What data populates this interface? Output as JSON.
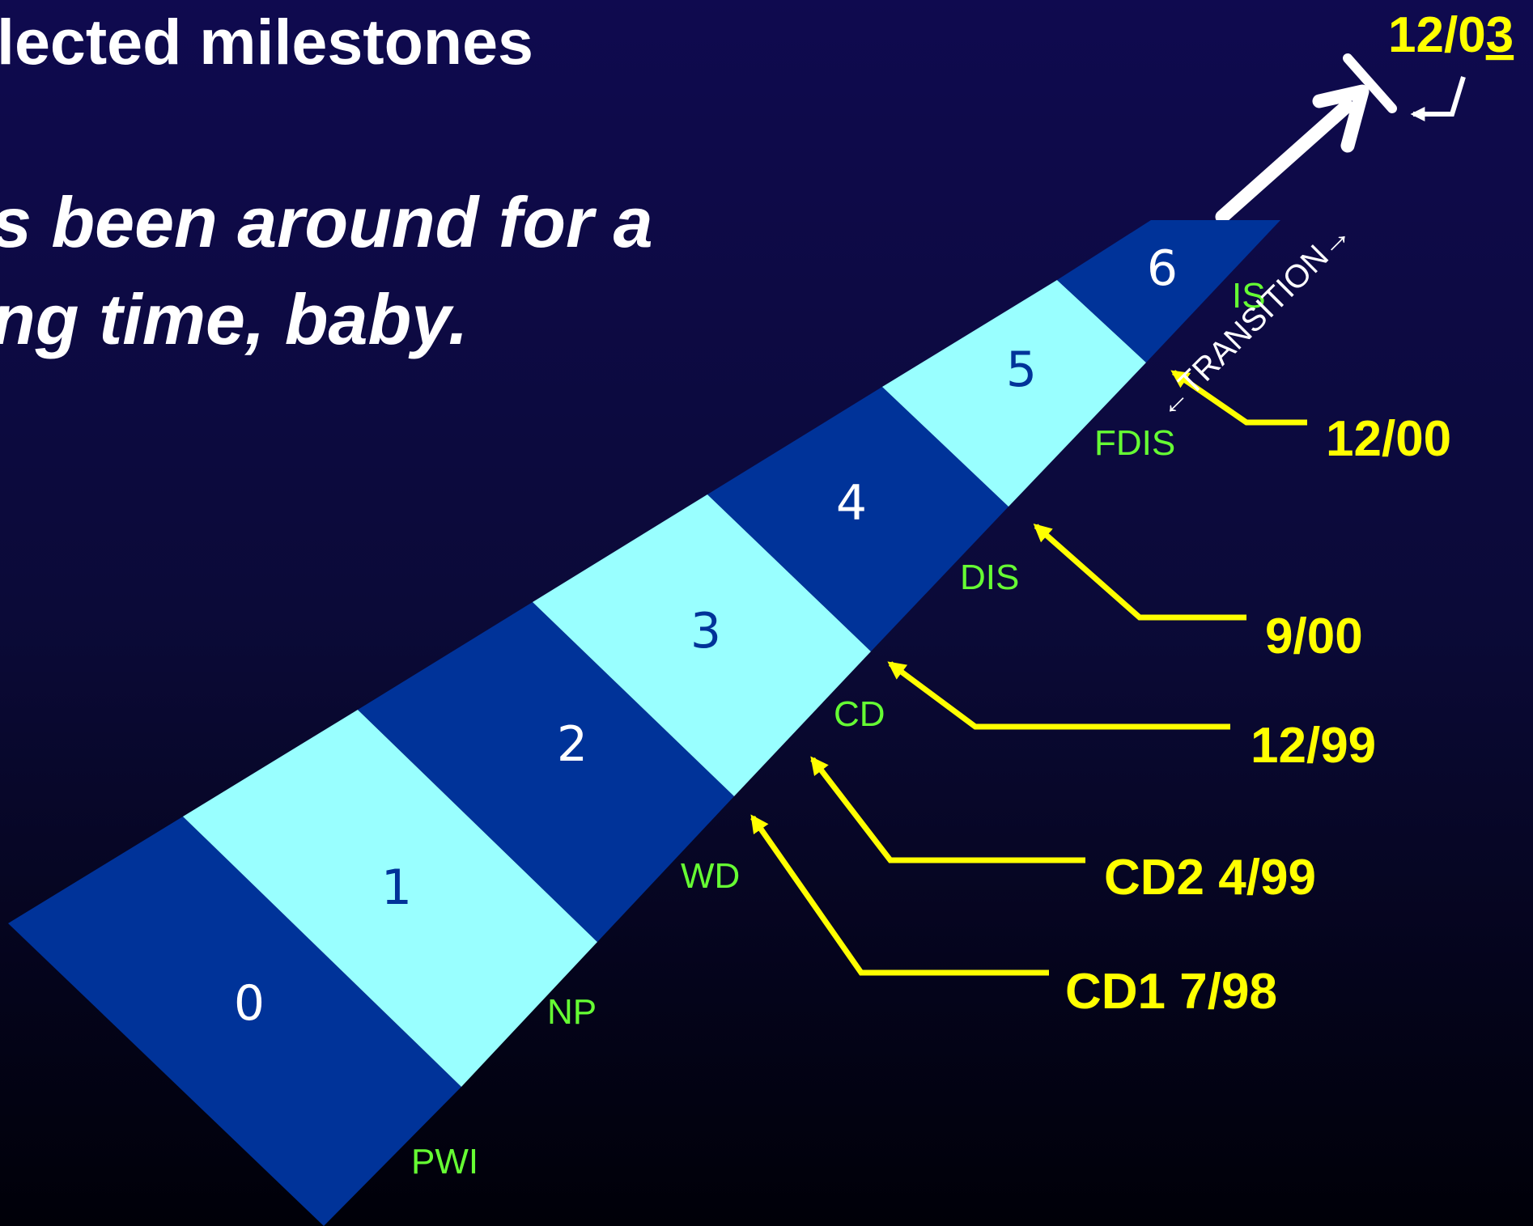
{
  "slide": {
    "title": "lected milestones",
    "subtitle_line1": "s been around for a",
    "subtitle_line2": "ng time, baby."
  },
  "colors": {
    "dark_band": "#003399",
    "light_band": "#99ffff",
    "stage_code": "#66ff33",
    "date_label": "#ffff00",
    "white_arrow": "#ffffff"
  },
  "stages": [
    {
      "number": "0",
      "code": "PWI"
    },
    {
      "number": "1",
      "code": "NP"
    },
    {
      "number": "2",
      "code": "WD"
    },
    {
      "number": "3",
      "code": "CD"
    },
    {
      "number": "4",
      "code": "DIS"
    },
    {
      "number": "5",
      "code": "FDIS"
    },
    {
      "number": "6",
      "code": "IS"
    }
  ],
  "milestones": [
    {
      "label": "CD1 7/98"
    },
    {
      "label": "CD2 4/99"
    },
    {
      "label": "12/99"
    },
    {
      "label": "9/00"
    },
    {
      "label": "12/00"
    }
  ],
  "final_milestone": {
    "prefix": "12/0",
    "underlined": "3"
  },
  "transition_label": "←TRANSITION→"
}
